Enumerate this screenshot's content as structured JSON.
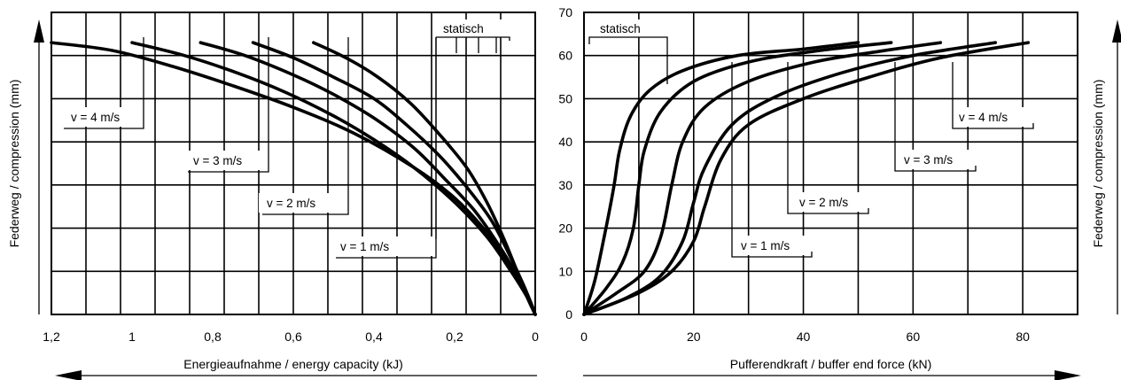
{
  "chart_data": [
    {
      "type": "line",
      "xlabel": "Energieaufnahme / energy capacity (kJ)",
      "ylabel": "Federweg / compression (mm)",
      "xlim": [
        1.2,
        0
      ],
      "ylim": [
        0,
        70
      ],
      "x_ticks": [
        "1,2",
        "1",
        "0,8",
        "0,6",
        "0,4",
        "0,2",
        "0"
      ],
      "grid": true,
      "series": [
        {
          "name": "v = 4 m/s",
          "points": [
            [
              1.2,
              63
            ],
            [
              1.05,
              61.2
            ],
            [
              0.9,
              57.5
            ],
            [
              0.75,
              53
            ],
            [
              0.6,
              48
            ],
            [
              0.45,
              42
            ],
            [
              0.3,
              34
            ],
            [
              0.2,
              27
            ],
            [
              0.12,
              19
            ],
            [
              0.07,
              12
            ],
            [
              0.03,
              6
            ],
            [
              0,
              0
            ]
          ]
        },
        {
          "name": "v = 3 m/s",
          "points": [
            [
              1.0,
              63
            ],
            [
              0.87,
              60
            ],
            [
              0.74,
              56
            ],
            [
              0.62,
              51.5
            ],
            [
              0.5,
              46
            ],
            [
              0.4,
              40.5
            ],
            [
              0.3,
              34
            ],
            [
              0.2,
              26
            ],
            [
              0.12,
              18
            ],
            [
              0.06,
              10
            ],
            [
              0.02,
              4
            ],
            [
              0,
              0
            ]
          ]
        },
        {
          "name": "v = 2 m/s",
          "points": [
            [
              0.83,
              63
            ],
            [
              0.72,
              60
            ],
            [
              0.6,
              55.5
            ],
            [
              0.5,
              51
            ],
            [
              0.4,
              45.5
            ],
            [
              0.3,
              38.5
            ],
            [
              0.22,
              31
            ],
            [
              0.15,
              24
            ],
            [
              0.09,
              16
            ],
            [
              0.045,
              9
            ],
            [
              0.015,
              3.5
            ],
            [
              0,
              0
            ]
          ]
        },
        {
          "name": "v = 1 m/s",
          "points": [
            [
              0.7,
              63
            ],
            [
              0.6,
              59.5
            ],
            [
              0.5,
              55
            ],
            [
              0.4,
              50
            ],
            [
              0.32,
              44
            ],
            [
              0.24,
              37
            ],
            [
              0.17,
              29.5
            ],
            [
              0.11,
              22
            ],
            [
              0.065,
              14
            ],
            [
              0.03,
              7
            ],
            [
              0.01,
              2.5
            ],
            [
              0,
              0
            ]
          ]
        },
        {
          "name": "statisch",
          "points": [
            [
              0.55,
              63
            ],
            [
              0.47,
              59.5
            ],
            [
              0.39,
              55
            ],
            [
              0.31,
              49
            ],
            [
              0.24,
              42
            ],
            [
              0.17,
              34
            ],
            [
              0.12,
              26
            ],
            [
              0.08,
              18
            ],
            [
              0.045,
              10
            ],
            [
              0.02,
              4
            ],
            [
              0,
              0
            ]
          ]
        }
      ],
      "labels": [
        "v = 4 m/s",
        "v = 3 m/s",
        "v = 2 m/s",
        "v = 1 m/s",
        "statisch"
      ]
    },
    {
      "type": "line",
      "xlabel": "Pufferendkraft / buffer end force (kN)",
      "ylabel": "Federweg / compression (mm)",
      "xlim": [
        0,
        90
      ],
      "ylim": [
        0,
        70
      ],
      "x_ticks": [
        "0",
        "20",
        "40",
        "60",
        "80"
      ],
      "y_ticks": [
        "0",
        "10",
        "20",
        "30",
        "40",
        "50",
        "60",
        "70"
      ],
      "grid": true,
      "series": [
        {
          "name": "statisch",
          "points": [
            [
              0,
              0
            ],
            [
              2,
              8
            ],
            [
              4,
              20
            ],
            [
              5.5,
              30
            ],
            [
              6.5,
              38
            ],
            [
              8.5,
              46
            ],
            [
              12,
              52
            ],
            [
              18,
              56.5
            ],
            [
              28,
              60
            ],
            [
              40,
              61.5
            ],
            [
              50,
              63
            ]
          ]
        },
        {
          "name": "v = 1 m/s",
          "points": [
            [
              0,
              0
            ],
            [
              4,
              6
            ],
            [
              7,
              12
            ],
            [
              9,
              20
            ],
            [
              10,
              30
            ],
            [
              11,
              38
            ],
            [
              14,
              47
            ],
            [
              20,
              54
            ],
            [
              30,
              58.5
            ],
            [
              42,
              61
            ],
            [
              56,
              63
            ]
          ]
        },
        {
          "name": "v = 2 m/s",
          "points": [
            [
              0,
              0
            ],
            [
              6,
              5
            ],
            [
              11,
              10
            ],
            [
              14,
              18
            ],
            [
              16,
              30
            ],
            [
              18,
              40
            ],
            [
              22,
              48
            ],
            [
              30,
              54
            ],
            [
              42,
              58.5
            ],
            [
              54,
              61
            ],
            [
              65,
              63
            ]
          ]
        },
        {
          "name": "v = 3 m/s",
          "points": [
            [
              0,
              0
            ],
            [
              8,
              4
            ],
            [
              14,
              9
            ],
            [
              18,
              17
            ],
            [
              20,
              26
            ],
            [
              22,
              34
            ],
            [
              27,
              44
            ],
            [
              35,
              50.5
            ],
            [
              47,
              56
            ],
            [
              60,
              60
            ],
            [
              75,
              63
            ]
          ]
        },
        {
          "name": "v = 4 m/s",
          "points": [
            [
              0,
              0
            ],
            [
              10,
              5
            ],
            [
              16,
              10
            ],
            [
              20,
              17
            ],
            [
              22,
              25
            ],
            [
              25,
              36
            ],
            [
              30,
              44
            ],
            [
              40,
              50
            ],
            [
              52,
              55
            ],
            [
              65,
              59.5
            ],
            [
              81,
              63
            ]
          ]
        }
      ],
      "labels": [
        "statisch",
        "v = 1 m/s",
        "v = 2 m/s",
        "v = 3 m/s",
        "v = 4 m/s"
      ]
    }
  ]
}
